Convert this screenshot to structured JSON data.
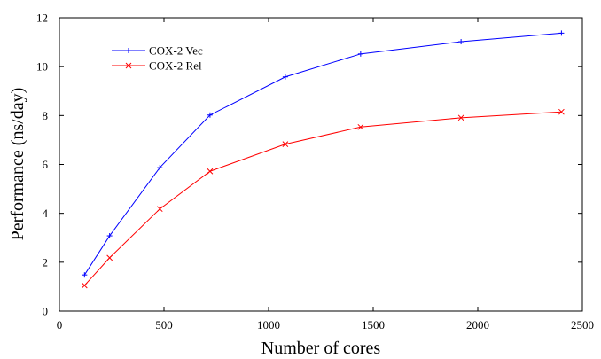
{
  "chart_data": {
    "type": "line",
    "title": "",
    "xlabel": "Number of cores",
    "ylabel": "Performance (ns/day)",
    "xlim": [
      0,
      2500
    ],
    "ylim": [
      0,
      12
    ],
    "xticks": [
      "0",
      "500",
      "1000",
      "1500",
      "2000",
      "2500"
    ],
    "yticks": [
      "0",
      "2",
      "4",
      "6",
      "8",
      "10",
      "12"
    ],
    "grid": false,
    "legend_position": "top-left",
    "series": [
      {
        "name": "COX-2 Vec",
        "color": "#0000ff",
        "marker": "plus",
        "x": [
          120,
          240,
          480,
          720,
          1080,
          1440,
          1920,
          2400
        ],
        "y": [
          1.48,
          3.08,
          5.87,
          8.02,
          9.58,
          10.52,
          11.02,
          11.37
        ]
      },
      {
        "name": "COX-2 Rel",
        "color": "#ff0000",
        "marker": "x",
        "x": [
          120,
          240,
          480,
          720,
          1080,
          1440,
          1920,
          2400
        ],
        "y": [
          1.05,
          2.18,
          4.18,
          5.72,
          6.83,
          7.53,
          7.91,
          8.15
        ]
      }
    ]
  }
}
